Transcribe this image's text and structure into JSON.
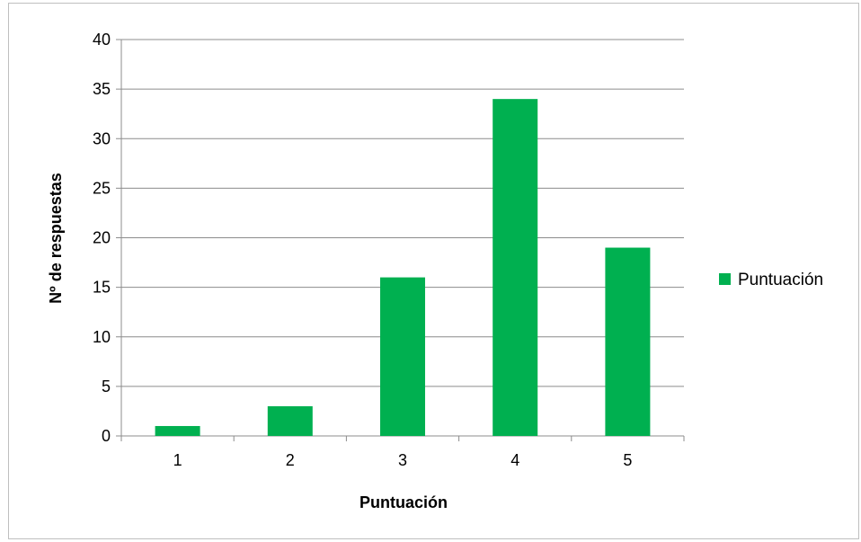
{
  "chart_data": {
    "type": "bar",
    "categories": [
      "1",
      "2",
      "3",
      "4",
      "5"
    ],
    "series": [
      {
        "name": "Puntuación",
        "values": [
          1,
          3,
          16,
          34,
          19
        ],
        "color": "#00b050"
      }
    ],
    "xlabel": "Puntuación",
    "ylabel": "Nº de respuestas",
    "ylim": [
      0,
      40
    ],
    "yticks": [
      "0",
      "5",
      "10",
      "15",
      "20",
      "25",
      "30",
      "35",
      "40"
    ],
    "grid": true,
    "legend_position": "right"
  },
  "colors": {
    "gridline": "#8c8c8c",
    "bar": "#00b050",
    "frame": "#bfbfbf"
  }
}
